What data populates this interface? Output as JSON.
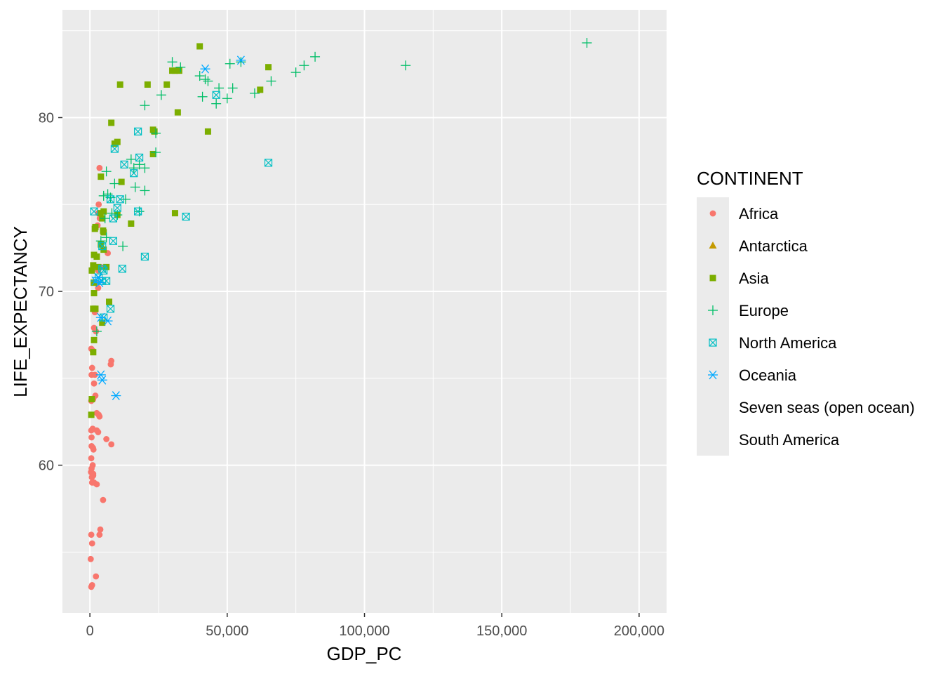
{
  "chart_data": {
    "type": "scatter",
    "xlabel": "GDP_PC",
    "ylabel": "LIFE_EXPECTANCY",
    "xlim": [
      -10000,
      210000
    ],
    "ylim": [
      51.5,
      86.2
    ],
    "x_ticks": [
      0,
      50000,
      100000,
      150000,
      200000
    ],
    "x_tick_labels": [
      "0",
      "50,000",
      "100,000",
      "150,000",
      "200,000"
    ],
    "y_ticks": [
      60,
      70,
      80
    ],
    "y_tick_labels": [
      "60",
      "70",
      "80"
    ],
    "grid": true,
    "legend": {
      "title": "CONTINENT",
      "position": "right",
      "entries": [
        {
          "name": "Africa",
          "color": "#F8766D",
          "shape": "circle"
        },
        {
          "name": "Antarctica",
          "color": "#C49A00",
          "shape": "triangle"
        },
        {
          "name": "Asia",
          "color": "#7CAE00",
          "shape": "square"
        },
        {
          "name": "Europe",
          "color": "#00BE67",
          "shape": "plus"
        },
        {
          "name": "North America",
          "color": "#00BFC4",
          "shape": "square-cross"
        },
        {
          "name": "Oceania",
          "color": "#00A9FF",
          "shape": "asterisk"
        },
        {
          "name": "Seven seas (open ocean)",
          "color": "#C77CFF",
          "shape": "none"
        },
        {
          "name": "South America",
          "color": "#FF61CC",
          "shape": "none"
        }
      ]
    },
    "series": [
      {
        "name": "Africa",
        "points": [
          [
            3500,
            77.1
          ],
          [
            3200,
            75
          ],
          [
            3000,
            74.5
          ],
          [
            3600,
            74.2
          ],
          [
            2800,
            73.8
          ],
          [
            6500,
            72.2
          ],
          [
            4000,
            71.4
          ],
          [
            3000,
            71.2
          ],
          [
            2500,
            70.5
          ],
          [
            3000,
            70.2
          ],
          [
            2000,
            68.9
          ],
          [
            1800,
            68.8
          ],
          [
            1500,
            67.9
          ],
          [
            2200,
            67.7
          ],
          [
            500,
            66.7
          ],
          [
            1000,
            66.6
          ],
          [
            7800,
            66
          ],
          [
            7600,
            65.8
          ],
          [
            800,
            65.6
          ],
          [
            1800,
            65.2
          ],
          [
            600,
            65.2
          ],
          [
            1500,
            64.7
          ],
          [
            2000,
            64
          ],
          [
            1200,
            63.8
          ],
          [
            500,
            63.7
          ],
          [
            2500,
            63
          ],
          [
            3200,
            62.9
          ],
          [
            3500,
            62.8
          ],
          [
            1000,
            62.1
          ],
          [
            500,
            62
          ],
          [
            2500,
            62
          ],
          [
            3000,
            61.9
          ],
          [
            600,
            61.6
          ],
          [
            6000,
            61.5
          ],
          [
            7800,
            61.2
          ],
          [
            600,
            61.1
          ],
          [
            1100,
            61
          ],
          [
            1300,
            60.9
          ],
          [
            500,
            60.4
          ],
          [
            1000,
            60
          ],
          [
            600,
            59.8
          ],
          [
            400,
            59.6
          ],
          [
            1200,
            59.5
          ],
          [
            700,
            59.3
          ],
          [
            1200,
            59.4
          ],
          [
            2500,
            58.9
          ],
          [
            800,
            59
          ],
          [
            1500,
            59
          ],
          [
            4800,
            58
          ],
          [
            3800,
            56.3
          ],
          [
            500,
            56
          ],
          [
            3500,
            56
          ],
          [
            800,
            55.5
          ],
          [
            300,
            54.6
          ],
          [
            2200,
            53.6
          ],
          [
            500,
            53
          ],
          [
            800,
            53.1
          ]
        ]
      },
      {
        "name": "Antarctica",
        "points": []
      },
      {
        "name": "Asia",
        "points": [
          [
            40000,
            84.1
          ],
          [
            65000,
            82.9
          ],
          [
            30000,
            82.7
          ],
          [
            31000,
            82.7
          ],
          [
            32500,
            82.7
          ],
          [
            11000,
            81.9
          ],
          [
            21000,
            81.9
          ],
          [
            28000,
            81.9
          ],
          [
            62000,
            81.6
          ],
          [
            32000,
            80.3
          ],
          [
            7800,
            79.7
          ],
          [
            23000,
            79.3
          ],
          [
            23500,
            79.2
          ],
          [
            43000,
            79.2
          ],
          [
            10000,
            78.6
          ],
          [
            9000,
            78.5
          ],
          [
            23000,
            77.9
          ],
          [
            4000,
            76.6
          ],
          [
            11500,
            76.3
          ],
          [
            31000,
            74.5
          ],
          [
            10000,
            74.4
          ],
          [
            3800,
            74.5
          ],
          [
            5000,
            74.6
          ],
          [
            4500,
            74.2
          ],
          [
            15000,
            73.9
          ],
          [
            2000,
            73.7
          ],
          [
            1800,
            73.6
          ],
          [
            4800,
            73.5
          ],
          [
            5000,
            73.4
          ],
          [
            1500,
            72.1
          ],
          [
            2500,
            72
          ],
          [
            4000,
            72.7
          ],
          [
            5000,
            72.4
          ],
          [
            1200,
            71.5
          ],
          [
            3000,
            71.4
          ],
          [
            6000,
            71.4
          ],
          [
            1400,
            70.5
          ],
          [
            700,
            71.2
          ],
          [
            1500,
            69.9
          ],
          [
            7000,
            69.4
          ],
          [
            1200,
            69
          ],
          [
            2000,
            69
          ],
          [
            4500,
            68.2
          ],
          [
            1500,
            67.2
          ],
          [
            1200,
            66.5
          ],
          [
            700,
            63.8
          ],
          [
            500,
            62.9
          ]
        ]
      },
      {
        "name": "Europe",
        "points": [
          [
            181000,
            84.3
          ],
          [
            82000,
            83.5
          ],
          [
            78000,
            83
          ],
          [
            115000,
            83
          ],
          [
            30000,
            83.2
          ],
          [
            51000,
            83.1
          ],
          [
            55000,
            83.2
          ],
          [
            33000,
            82.9
          ],
          [
            75000,
            82.6
          ],
          [
            66000,
            82.1
          ],
          [
            42000,
            82.2
          ],
          [
            40000,
            82.4
          ],
          [
            43000,
            82.1
          ],
          [
            52000,
            81.7
          ],
          [
            47000,
            81.7
          ],
          [
            26000,
            81.3
          ],
          [
            41000,
            81.2
          ],
          [
            50000,
            81.1
          ],
          [
            60000,
            81.4
          ],
          [
            46000,
            80.8
          ],
          [
            20000,
            80.7
          ],
          [
            24000,
            79.1
          ],
          [
            24000,
            78
          ],
          [
            15000,
            77.6
          ],
          [
            18000,
            77.3
          ],
          [
            16000,
            77.1
          ],
          [
            20000,
            77.1
          ],
          [
            6000,
            76.9
          ],
          [
            9000,
            76.2
          ],
          [
            16500,
            76
          ],
          [
            20000,
            75.8
          ],
          [
            6500,
            75.6
          ],
          [
            5000,
            75.5
          ],
          [
            7500,
            75.4
          ],
          [
            13000,
            75.3
          ],
          [
            18000,
            74.6
          ],
          [
            5500,
            74.2
          ],
          [
            8000,
            74.5
          ],
          [
            10000,
            74.4
          ],
          [
            12000,
            72.6
          ],
          [
            6000,
            73.1
          ],
          [
            4000,
            72.9
          ],
          [
            2500,
            67.7
          ]
        ]
      },
      {
        "name": "North America",
        "points": [
          [
            46000,
            81.3
          ],
          [
            65000,
            77.4
          ],
          [
            17500,
            79.2
          ],
          [
            9000,
            78.2
          ],
          [
            18000,
            77.7
          ],
          [
            12500,
            77.3
          ],
          [
            16000,
            76.8
          ],
          [
            11000,
            75.3
          ],
          [
            7500,
            75.3
          ],
          [
            10000,
            74.8
          ],
          [
            17500,
            74.6
          ],
          [
            35000,
            74.3
          ],
          [
            1500,
            74.6
          ],
          [
            8500,
            74.2
          ],
          [
            8500,
            72.9
          ],
          [
            4500,
            72.6
          ],
          [
            20000,
            72
          ],
          [
            11800,
            71.3
          ],
          [
            4500,
            71.3
          ],
          [
            5000,
            71.2
          ],
          [
            3200,
            70.8
          ],
          [
            4500,
            70.6
          ],
          [
            6000,
            70.6
          ],
          [
            7500,
            69
          ],
          [
            5000,
            68.5
          ]
        ]
      },
      {
        "name": "Oceania",
        "points": [
          [
            55000,
            83.3
          ],
          [
            42000,
            82.8
          ],
          [
            3000,
            70.8
          ],
          [
            3500,
            70.5
          ],
          [
            2000,
            70.6
          ],
          [
            6500,
            68.3
          ],
          [
            4000,
            68.5
          ],
          [
            4000,
            65.2
          ],
          [
            4500,
            64.9
          ],
          [
            9500,
            64
          ]
        ]
      },
      {
        "name": "Seven seas (open ocean)",
        "points": []
      },
      {
        "name": "South America",
        "points": []
      }
    ]
  }
}
